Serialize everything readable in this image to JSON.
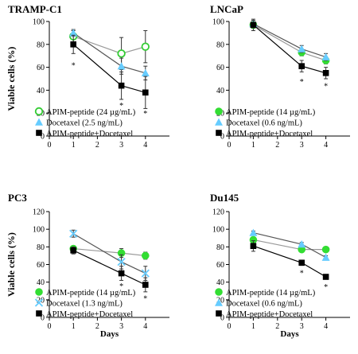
{
  "chart_data": [
    {
      "type": "line",
      "title": "TRAMP-C1",
      "xlabel": "",
      "ylabel": "Viable cells (%)",
      "xlim": [
        0,
        5
      ],
      "ylim": [
        0,
        100
      ],
      "xticks": [
        0,
        1,
        2,
        3,
        4
      ],
      "yticks": [
        0,
        20,
        40,
        60,
        80,
        100
      ],
      "legend_position": "bottom-left",
      "series": [
        {
          "name": "APIM-peptide (24 µg/mL)",
          "marker": "open-circle",
          "color": "#33cc33",
          "line_color": "#999999",
          "x": [
            1,
            3,
            4
          ],
          "y": [
            87,
            72,
            78
          ],
          "err": [
            5,
            14,
            14
          ]
        },
        {
          "name": "Docetaxel (2.5 ng/mL)",
          "marker": "triangle",
          "color": "#66ccff",
          "line_color": "#555555",
          "x": [
            1,
            3,
            4
          ],
          "y": [
            90,
            61,
            55
          ],
          "err": [
            3,
            7,
            6
          ]
        },
        {
          "name": "APIM-peptide+Docetaxel",
          "marker": "square",
          "color": "#000000",
          "line_color": "#000000",
          "x": [
            1,
            3,
            4
          ],
          "y": [
            80,
            44,
            38
          ],
          "err": [
            8,
            12,
            14
          ]
        }
      ],
      "annotations": [
        {
          "text": "*",
          "x": 1,
          "y": 62
        },
        {
          "text": "*",
          "x": 3,
          "y": 27
        },
        {
          "text": "*",
          "x": 4,
          "y": 20
        }
      ]
    },
    {
      "type": "line",
      "title": "LNCaP",
      "xlabel": "",
      "ylabel": "",
      "xlim": [
        0,
        5
      ],
      "ylim": [
        0,
        100
      ],
      "xticks": [
        0,
        1,
        2,
        3,
        4
      ],
      "yticks": [
        0,
        20,
        40,
        60,
        80,
        100
      ],
      "legend_position": "bottom-left",
      "series": [
        {
          "name": "APIM-peptide (14 µg/mL)",
          "marker": "circle",
          "color": "#33dd33",
          "line_color": "#999999",
          "x": [
            1,
            3,
            4
          ],
          "y": [
            97,
            73,
            66
          ],
          "err": [
            3,
            3,
            3
          ]
        },
        {
          "name": "Docetaxel (0.6 ng/mL)",
          "marker": "triangle",
          "color": "#66ccff",
          "line_color": "#555555",
          "x": [
            1,
            3,
            4
          ],
          "y": [
            98,
            76,
            69
          ],
          "err": [
            3,
            3,
            3
          ]
        },
        {
          "name": "APIM-peptide+Docetaxel",
          "marker": "square",
          "color": "#000000",
          "line_color": "#000000",
          "x": [
            1,
            3,
            4
          ],
          "y": [
            97,
            61,
            55
          ],
          "err": [
            5,
            5,
            5
          ]
        }
      ],
      "annotations": [
        {
          "text": "*",
          "x": 3,
          "y": 48
        },
        {
          "text": "*",
          "x": 4,
          "y": 44
        }
      ]
    },
    {
      "type": "line",
      "title": "PC3",
      "xlabel": "Days",
      "ylabel": "Viable cells (%)",
      "xlim": [
        0,
        5
      ],
      "ylim": [
        0,
        120
      ],
      "xticks": [
        0,
        1,
        2,
        3,
        4
      ],
      "yticks": [
        0,
        20,
        40,
        60,
        80,
        100,
        120
      ],
      "legend_position": "bottom-left",
      "series": [
        {
          "name": "APIM-peptide (14 µg/mL)",
          "marker": "circle",
          "color": "#33dd33",
          "line_color": "#999999",
          "x": [
            1,
            3,
            4
          ],
          "y": [
            78,
            73,
            70
          ],
          "err": [
            3,
            5,
            4
          ]
        },
        {
          "name": "Docetaxel (1.3 ng/mL)",
          "marker": "x",
          "color": "#66ccff",
          "line_color": "#555555",
          "x": [
            1,
            3,
            4
          ],
          "y": [
            95,
            63,
            50
          ],
          "err": [
            4,
            8,
            8
          ]
        },
        {
          "name": "APIM-peptide+Docetaxel",
          "marker": "square",
          "color": "#000000",
          "line_color": "#000000",
          "x": [
            1,
            3,
            4
          ],
          "y": [
            76,
            50,
            37
          ],
          "err": [
            4,
            8,
            8
          ]
        }
      ],
      "annotations": [
        {
          "text": "*",
          "x": 3,
          "y": 36
        },
        {
          "text": "*",
          "x": 4,
          "y": 22
        }
      ]
    },
    {
      "type": "line",
      "title": "Du145",
      "xlabel": "Days",
      "ylabel": "",
      "xlim": [
        0,
        5
      ],
      "ylim": [
        0,
        120
      ],
      "xticks": [
        0,
        1,
        2,
        3,
        4
      ],
      "yticks": [
        0,
        20,
        40,
        60,
        80,
        100,
        120
      ],
      "legend_position": "bottom-left",
      "series": [
        {
          "name": "APIM-peptide (14 µg/mL)",
          "marker": "circle",
          "color": "#33dd33",
          "line_color": "#999999",
          "x": [
            1,
            3,
            4
          ],
          "y": [
            88,
            77,
            77
          ],
          "err": [
            3,
            3,
            2
          ]
        },
        {
          "name": "Docetaxel (0.6 ng/mL)",
          "marker": "triangle",
          "color": "#66ccff",
          "line_color": "#555555",
          "x": [
            1,
            3,
            4
          ],
          "y": [
            96,
            83,
            68
          ],
          "err": [
            2,
            2,
            2
          ]
        },
        {
          "name": "APIM-peptide+Docetaxel",
          "marker": "square",
          "color": "#000000",
          "line_color": "#000000",
          "x": [
            1,
            3,
            4
          ],
          "y": [
            81,
            62,
            46
          ],
          "err": [
            6,
            3,
            2
          ]
        }
      ],
      "annotations": [
        {
          "text": "*",
          "x": 3,
          "y": 51
        },
        {
          "text": "*",
          "x": 4,
          "y": 35
        }
      ]
    }
  ]
}
